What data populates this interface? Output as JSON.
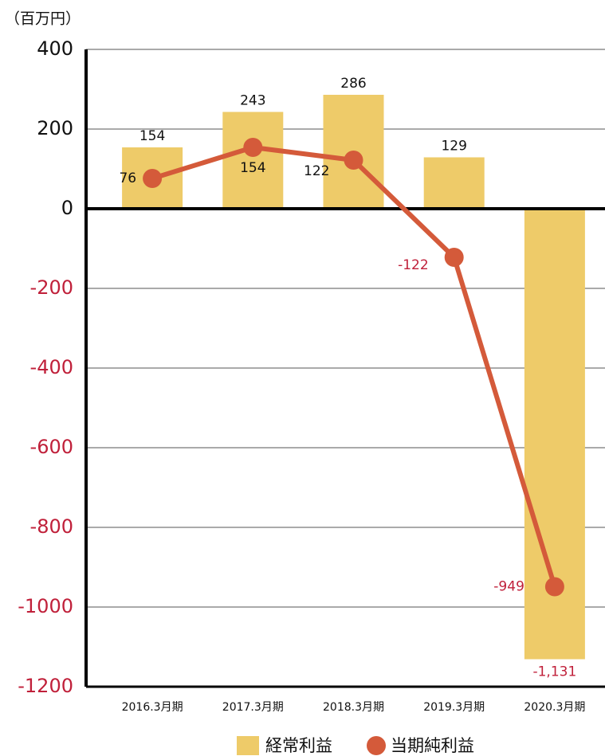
{
  "chart_data": {
    "type": "bar+line",
    "unit": "（百万円）",
    "categories": [
      "2016.3月期",
      "2017.3月期",
      "2018.3月期",
      "2019.3月期",
      "2020.3月期"
    ],
    "series": [
      {
        "name": "経常利益",
        "type": "bar",
        "color": "#eecb69",
        "values": [
          154,
          243,
          286,
          129,
          -1131
        ],
        "value_labels": [
          "154",
          "243",
          "286",
          "129",
          "-1,131"
        ]
      },
      {
        "name": "当期純利益",
        "type": "line",
        "color": "#d45a3a",
        "values": [
          76,
          154,
          122,
          -122,
          -949
        ]
      }
    ],
    "ylim": [
      -1200,
      400
    ],
    "yticks": [
      -1200,
      -1000,
      -800,
      -600,
      -400,
      -200,
      0,
      200,
      400
    ],
    "grid": true,
    "negative_color": "#c0203a",
    "legend": "bottom"
  }
}
